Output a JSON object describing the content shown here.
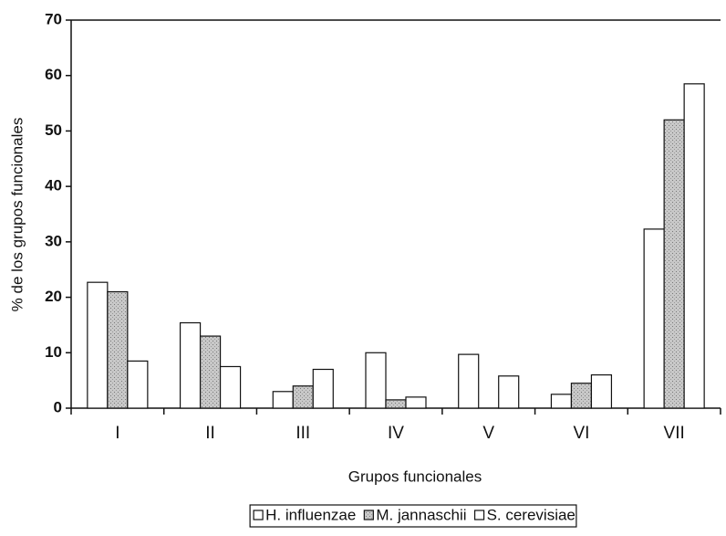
{
  "chart_data": {
    "type": "bar",
    "xlabel": "Grupos funcionales",
    "ylabel": "% de los grupos funcionales",
    "categories": [
      "I",
      "II",
      "III",
      "IV",
      "V",
      "VI",
      "VII"
    ],
    "series": [
      {
        "name": "H. influenzae",
        "color": "#ffffff",
        "values": [
          22.7,
          15.4,
          3,
          10,
          9.7,
          2.5,
          32.3
        ]
      },
      {
        "name": "M. jannaschii",
        "color": "#b8b8b8",
        "values": [
          21,
          13,
          4,
          1.5,
          0,
          4.5,
          52
        ]
      },
      {
        "name": "S. cerevisiae",
        "color": "#ffffff",
        "values": [
          8.5,
          7.5,
          7,
          2,
          5.8,
          6,
          58.5
        ]
      }
    ],
    "ylim": [
      0,
      70
    ],
    "yticks": [
      0,
      10,
      20,
      30,
      40,
      50,
      60,
      70
    ],
    "grid": false,
    "legend": "bottom"
  }
}
